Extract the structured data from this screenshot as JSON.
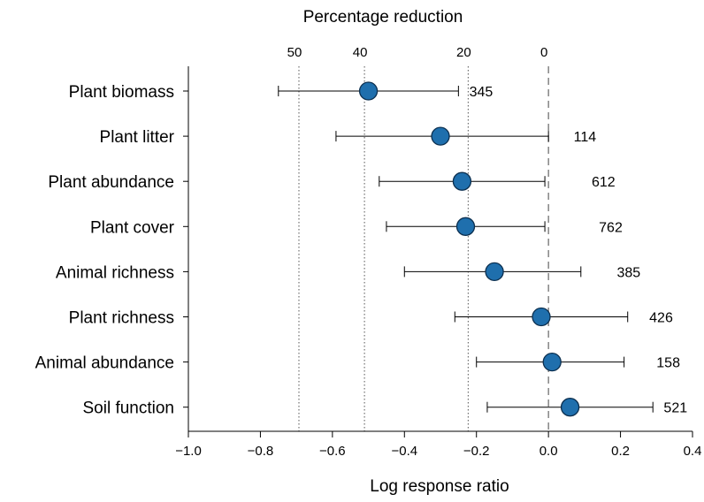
{
  "chart_data": {
    "type": "scatter",
    "subtype": "forest-plot",
    "title": "",
    "xlabel": "Log response ratio",
    "top_axis_label": "Percentage reduction",
    "xlim": [
      -1.0,
      0.4
    ],
    "x_ticks": [
      "−1.0",
      "−0.8",
      "−0.6",
      "−0.4",
      "−0.2",
      "0.0",
      "0.2",
      "0.4"
    ],
    "x_tick_values": [
      -1.0,
      -0.8,
      -0.6,
      -0.4,
      -0.2,
      0.0,
      0.2,
      0.4
    ],
    "top_ticks": [
      {
        "label": "50",
        "x": -0.693
      },
      {
        "label": "40",
        "x": -0.511
      },
      {
        "label": "20",
        "x": -0.223
      },
      {
        "label": "0",
        "x": 0.0
      }
    ],
    "reference_line_x": 0.0,
    "grid": false,
    "marker_color": "#1f6fad",
    "categories": [
      "Plant biomass",
      "Plant litter",
      "Plant abundance",
      "Plant cover",
      "Animal richness",
      "Plant richness",
      "Animal abundance",
      "Soil function"
    ],
    "estimates": [
      -0.5,
      -0.3,
      -0.24,
      -0.23,
      -0.15,
      -0.02,
      0.01,
      0.06
    ],
    "ci_lower": [
      -0.75,
      -0.59,
      -0.47,
      -0.45,
      -0.4,
      -0.26,
      -0.2,
      -0.17
    ],
    "ci_upper": [
      -0.25,
      0.0,
      -0.01,
      -0.01,
      0.09,
      0.22,
      0.21,
      0.29
    ],
    "n": [
      "345",
      "114",
      "612",
      "762",
      "385",
      "426",
      "158",
      "521"
    ],
    "n_label_x": [
      -0.22,
      0.07,
      0.12,
      0.14,
      0.19,
      0.28,
      0.3,
      0.32
    ]
  }
}
